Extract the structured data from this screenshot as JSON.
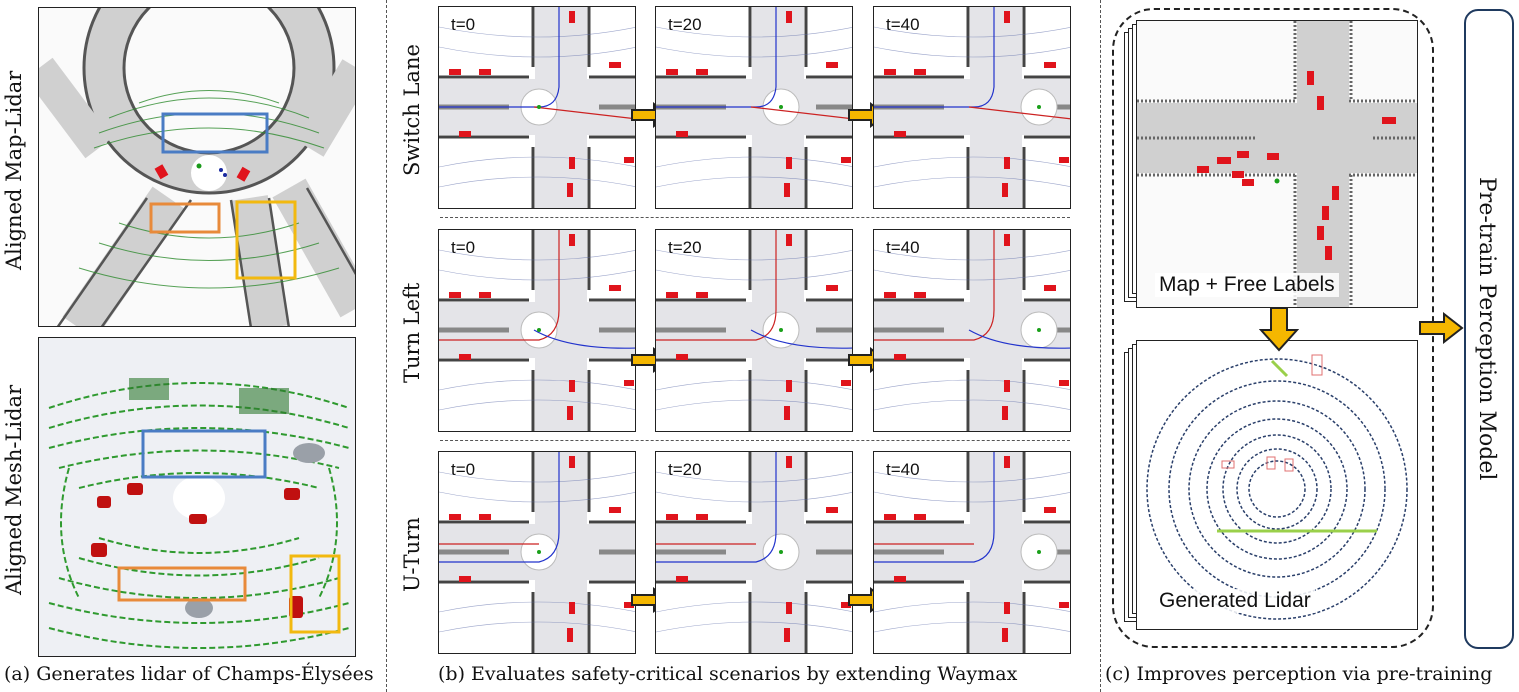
{
  "section_a": {
    "label_top": "Aligned Map-Lidar",
    "label_bottom": "Aligned Mesh-Lidar",
    "caption": "(a) Generates lidar of Champs-Élysées"
  },
  "section_b": {
    "rows": [
      {
        "label": "Switch Lane",
        "times": [
          "t=0",
          "t=20",
          "t=40"
        ]
      },
      {
        "label": "Turn Left",
        "times": [
          "t=0",
          "t=20",
          "t=40"
        ]
      },
      {
        "label": "U-Turn",
        "times": [
          "t=0",
          "t=20",
          "t=40"
        ]
      }
    ],
    "caption": "(b) Evaluates safety-critical scenarios by extending Waymax"
  },
  "section_c": {
    "map_label": "Map + Free Labels",
    "lidar_label": "Generated Lidar",
    "model_label": "Pre-train Perception Model",
    "caption": "(c) Improves perception via pre-training"
  },
  "colors": {
    "arrow": "#f5b700",
    "lidar_green": "#2e8b2e",
    "road_gray": "#c8c8c8",
    "car_red": "#e0141c",
    "box_blue": "#4a7cc4",
    "box_orange": "#e88a3a",
    "box_yellow": "#f2b90f",
    "model_box": "#1f3a5f"
  }
}
